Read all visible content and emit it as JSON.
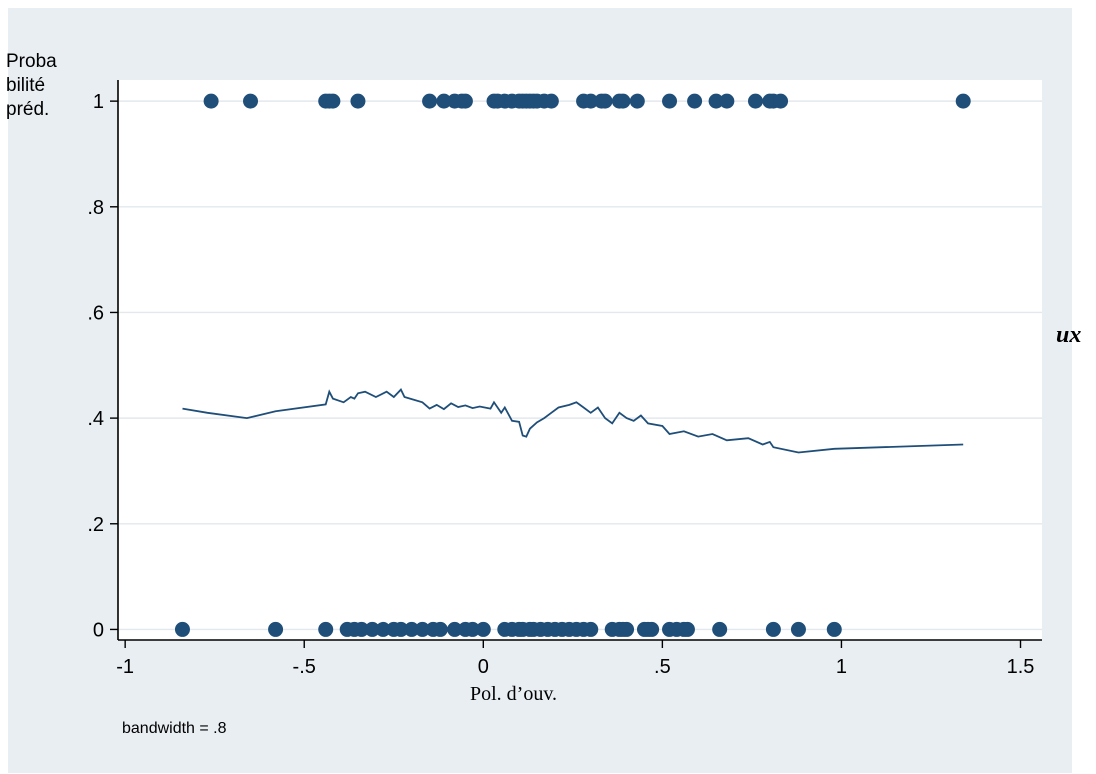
{
  "chart_data": {
    "type": "scatter",
    "ylabel": "Proba bilité préd.",
    "xlabel": "Pol. d’ouv.",
    "note": "bandwidth = .8",
    "edge_text": "ux",
    "xlim": [
      -1.02,
      1.56
    ],
    "ylim": [
      -0.02,
      1.04
    ],
    "x_ticks": [
      -1,
      -0.5,
      0,
      0.5,
      1,
      1.5
    ],
    "x_tick_labels": [
      "-1",
      "-.5",
      "0",
      ".5",
      "1",
      "1.5"
    ],
    "y_ticks": [
      0,
      0.2,
      0.4,
      0.6,
      0.8,
      1
    ],
    "y_tick_labels": [
      "0",
      ".2",
      ".4",
      ".6",
      ".8",
      "1"
    ],
    "grid": true,
    "colors": {
      "marker": "#1f4e79",
      "line": "#1f4e79",
      "background": "#e9eef3",
      "plot": "#ffffff"
    },
    "points_y1_x": [
      -0.76,
      -0.65,
      -0.44,
      -0.43,
      -0.42,
      -0.35,
      -0.15,
      -0.11,
      -0.08,
      -0.06,
      -0.05,
      0.03,
      0.04,
      0.06,
      0.08,
      0.1,
      0.11,
      0.12,
      0.13,
      0.14,
      0.15,
      0.17,
      0.19,
      0.28,
      0.3,
      0.33,
      0.34,
      0.38,
      0.39,
      0.43,
      0.52,
      0.59,
      0.65,
      0.68,
      0.76,
      0.8,
      0.81,
      0.83,
      1.34
    ],
    "points_y0_x": [
      -0.84,
      -0.58,
      -0.44,
      -0.38,
      -0.36,
      -0.34,
      -0.31,
      -0.28,
      -0.25,
      -0.23,
      -0.2,
      -0.17,
      -0.14,
      -0.12,
      -0.08,
      -0.05,
      -0.03,
      0.0,
      0.06,
      0.08,
      0.1,
      0.11,
      0.13,
      0.14,
      0.16,
      0.18,
      0.2,
      0.22,
      0.24,
      0.26,
      0.28,
      0.3,
      0.36,
      0.38,
      0.39,
      0.4,
      0.45,
      0.46,
      0.47,
      0.52,
      0.54,
      0.56,
      0.57,
      0.66,
      0.81,
      0.88,
      0.98
    ],
    "series": [
      {
        "type": "line",
        "x": [
          -0.84,
          -0.77,
          -0.66,
          -0.58,
          -0.44,
          -0.43,
          -0.42,
          -0.39,
          -0.37,
          -0.36,
          -0.35,
          -0.33,
          -0.3,
          -0.27,
          -0.25,
          -0.23,
          -0.22,
          -0.2,
          -0.17,
          -0.15,
          -0.13,
          -0.11,
          -0.09,
          -0.07,
          -0.05,
          -0.03,
          -0.01,
          0.02,
          0.03,
          0.05,
          0.06,
          0.08,
          0.1,
          0.11,
          0.12,
          0.13,
          0.15,
          0.17,
          0.19,
          0.21,
          0.24,
          0.26,
          0.28,
          0.3,
          0.32,
          0.34,
          0.36,
          0.38,
          0.4,
          0.42,
          0.44,
          0.46,
          0.5,
          0.52,
          0.56,
          0.6,
          0.64,
          0.68,
          0.74,
          0.78,
          0.8,
          0.81,
          0.88,
          0.98,
          1.34
        ],
        "y": [
          0.418,
          0.41,
          0.4,
          0.413,
          0.426,
          0.45,
          0.437,
          0.43,
          0.44,
          0.437,
          0.447,
          0.45,
          0.44,
          0.45,
          0.44,
          0.454,
          0.44,
          0.436,
          0.43,
          0.418,
          0.425,
          0.417,
          0.428,
          0.421,
          0.424,
          0.419,
          0.422,
          0.418,
          0.43,
          0.41,
          0.42,
          0.395,
          0.393,
          0.367,
          0.365,
          0.38,
          0.392,
          0.4,
          0.41,
          0.42,
          0.425,
          0.43,
          0.42,
          0.41,
          0.42,
          0.4,
          0.39,
          0.41,
          0.4,
          0.395,
          0.405,
          0.39,
          0.385,
          0.37,
          0.375,
          0.365,
          0.37,
          0.358,
          0.362,
          0.35,
          0.355,
          0.345,
          0.335,
          0.342,
          0.35
        ]
      }
    ]
  }
}
